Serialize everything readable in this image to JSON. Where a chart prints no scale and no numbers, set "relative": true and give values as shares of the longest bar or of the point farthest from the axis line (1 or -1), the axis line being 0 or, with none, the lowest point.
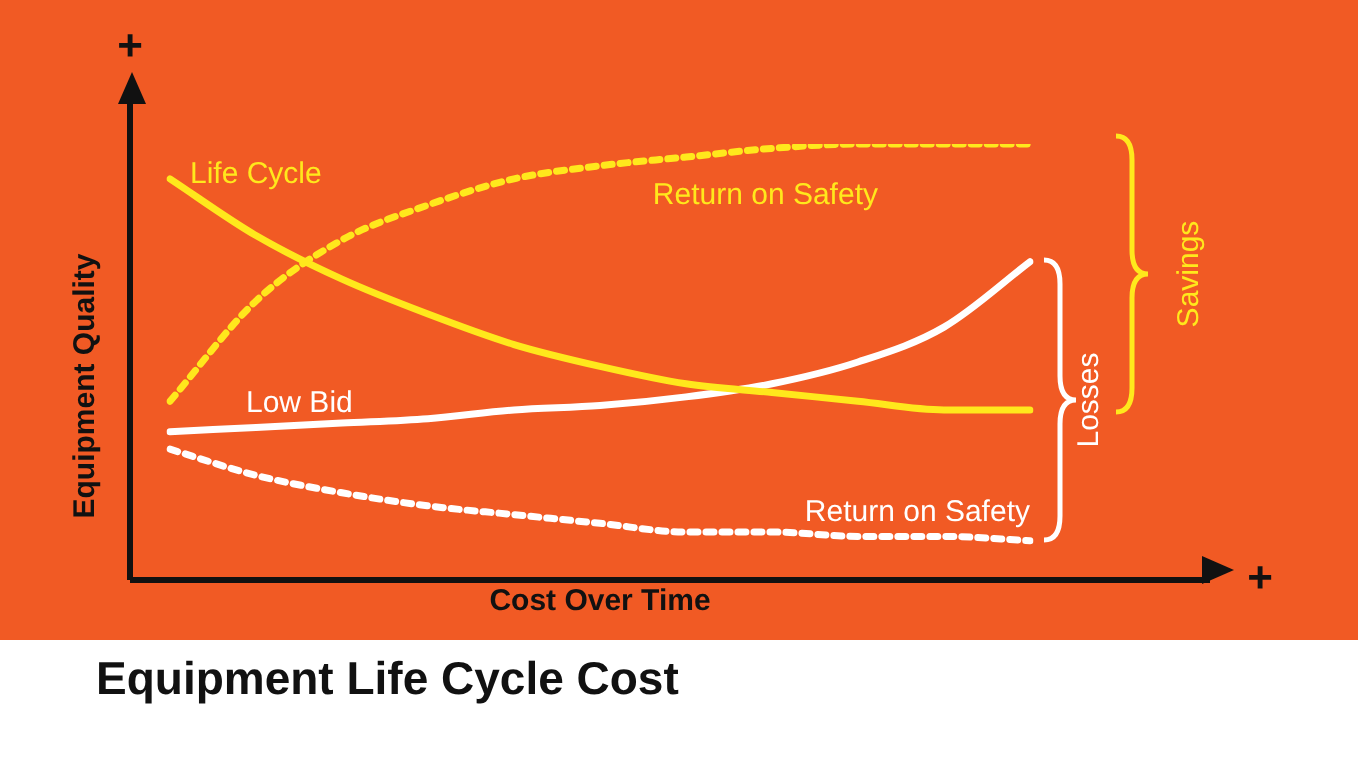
{
  "chart_data": {
    "type": "line",
    "title": "Equipment Life Cycle Cost",
    "xlabel": "Cost Over Time",
    "ylabel": "Equipment Quality",
    "relative": true,
    "legend": false,
    "marker": "none",
    "categories": [
      null,
      null,
      null,
      null,
      null,
      null,
      null,
      null,
      null,
      null,
      null
    ],
    "series": [
      {
        "name": "Life Cycle",
        "color": "#ffe81c",
        "line_style": "solid",
        "values": [
          0.92,
          0.79,
          0.69,
          0.61,
          0.54,
          0.49,
          0.45,
          0.43,
          0.41,
          0.39,
          0.39
        ]
      },
      {
        "name": "Return on Safety",
        "color": "#ffe81c",
        "line_style": "dotted",
        "values": [
          0.41,
          0.64,
          0.78,
          0.86,
          0.92,
          0.95,
          0.97,
          0.99,
          1.0,
          1.0,
          1.0
        ]
      },
      {
        "name": "Low Bid",
        "color": "#ffffff",
        "line_style": "solid",
        "values": [
          0.34,
          0.35,
          0.36,
          0.37,
          0.39,
          0.4,
          0.42,
          0.45,
          0.5,
          0.58,
          0.73
        ]
      },
      {
        "name": "Return on Safety",
        "color": "#ffffff",
        "line_style": "dotted",
        "values": [
          0.3,
          0.24,
          0.2,
          0.17,
          0.15,
          0.13,
          0.11,
          0.11,
          0.1,
          0.1,
          0.09
        ]
      }
    ],
    "annotations": [
      "+",
      "+",
      "Savings",
      "Losses"
    ]
  }
}
